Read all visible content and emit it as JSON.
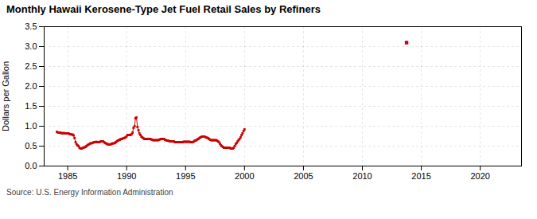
{
  "chart_data": {
    "type": "line",
    "title": "Monthly Hawaii Kerosene-Type Jet Fuel Retail Sales by Refiners",
    "ylabel": "Dollars per Gallon",
    "caption": "Source: U.S. Energy Information Administration",
    "xlim": [
      1983.0,
      2023.5
    ],
    "ylim": [
      0.0,
      3.5
    ],
    "xticks": [
      1985,
      1990,
      1995,
      2000,
      2005,
      2010,
      2015,
      2020
    ],
    "yticks": [
      {
        "value": 0.0,
        "label": "0.0"
      },
      0.5,
      {
        "value": 1.0,
        "label": "1.0"
      },
      1.5,
      {
        "value": 2.0,
        "label": "2.0"
      },
      2.5,
      {
        "value": 3.0,
        "label": "3.0"
      },
      3.5
    ],
    "grid": true,
    "series": [
      {
        "type": "line",
        "color": "#cc0000",
        "marker": "square",
        "x": [
          1984.08,
          1984.17,
          1984.25,
          1984.33,
          1984.42,
          1984.5,
          1984.58,
          1984.67,
          1984.75,
          1984.83,
          1984.92,
          1985.0,
          1985.08,
          1985.17,
          1985.25,
          1985.33,
          1985.42,
          1985.5,
          1985.58,
          1985.67,
          1985.75,
          1985.83,
          1985.92,
          1986.0,
          1986.08,
          1986.17,
          1986.25,
          1986.33,
          1986.42,
          1986.5,
          1986.58,
          1986.67,
          1986.75,
          1986.83,
          1986.92,
          1987.0,
          1987.08,
          1987.17,
          1987.25,
          1987.33,
          1987.42,
          1987.5,
          1987.58,
          1987.67,
          1987.75,
          1987.83,
          1987.92,
          1988.0,
          1988.08,
          1988.17,
          1988.25,
          1988.33,
          1988.42,
          1988.5,
          1988.58,
          1988.67,
          1988.75,
          1988.83,
          1988.92,
          1989.0,
          1989.08,
          1989.17,
          1989.25,
          1989.33,
          1989.42,
          1989.5,
          1989.58,
          1989.67,
          1989.75,
          1989.83,
          1989.92,
          1990.0,
          1990.08,
          1990.17,
          1990.25,
          1990.33,
          1990.42,
          1990.5,
          1990.58,
          1990.67,
          1990.75,
          1990.83,
          1990.92,
          1991.0,
          1991.08,
          1991.17,
          1991.25,
          1991.33,
          1991.42,
          1991.5,
          1991.58,
          1991.67,
          1991.75,
          1991.83,
          1991.92,
          1992.0,
          1992.08,
          1992.17,
          1992.25,
          1992.33,
          1992.42,
          1992.5,
          1992.58,
          1992.67,
          1992.75,
          1992.83,
          1992.92,
          1993.0,
          1993.08,
          1993.17,
          1993.25,
          1993.33,
          1993.42,
          1993.5,
          1993.58,
          1993.67,
          1993.75,
          1993.83,
          1993.92,
          1994.0,
          1994.08,
          1994.17,
          1994.25,
          1994.33,
          1994.42,
          1994.5,
          1994.58,
          1994.67,
          1994.75,
          1994.83,
          1994.92,
          1995.0,
          1995.08,
          1995.17,
          1995.25,
          1995.33,
          1995.42,
          1995.5,
          1995.58,
          1995.67,
          1995.75,
          1995.83,
          1995.92,
          1996.0,
          1996.08,
          1996.17,
          1996.25,
          1996.33,
          1996.42,
          1996.5,
          1996.58,
          1996.67,
          1996.75,
          1996.83,
          1996.92,
          1997.0,
          1997.08,
          1997.17,
          1997.25,
          1997.33,
          1997.42,
          1997.5,
          1997.58,
          1997.67,
          1997.75,
          1997.83,
          1997.92,
          1998.0,
          1998.08,
          1998.17,
          1998.25,
          1998.33,
          1998.42,
          1998.5,
          1998.58,
          1998.67,
          1998.75,
          1998.83,
          1998.92,
          1999.0,
          1999.08,
          1999.17,
          1999.25,
          1999.33,
          1999.42,
          1999.5,
          1999.58,
          1999.67,
          1999.75,
          1999.83,
          1999.92,
          2000.0
        ],
        "values": [
          0.86,
          0.84,
          0.84,
          0.84,
          0.83,
          0.83,
          0.82,
          0.83,
          0.82,
          0.82,
          0.82,
          0.82,
          0.82,
          0.8,
          0.8,
          0.79,
          0.79,
          0.77,
          0.7,
          0.6,
          0.55,
          0.52,
          0.5,
          0.46,
          0.44,
          0.44,
          0.45,
          0.46,
          0.47,
          0.48,
          0.5,
          0.52,
          0.54,
          0.55,
          0.57,
          0.57,
          0.58,
          0.59,
          0.6,
          0.6,
          0.61,
          0.6,
          0.6,
          0.6,
          0.61,
          0.62,
          0.62,
          0.62,
          0.6,
          0.58,
          0.57,
          0.55,
          0.55,
          0.54,
          0.54,
          0.55,
          0.56,
          0.57,
          0.57,
          0.58,
          0.6,
          0.62,
          0.64,
          0.65,
          0.66,
          0.68,
          0.68,
          0.69,
          0.7,
          0.71,
          0.72,
          0.75,
          0.78,
          0.78,
          0.78,
          0.78,
          0.8,
          0.84,
          0.96,
          1.0,
          1.2,
          1.22,
          0.98,
          0.9,
          0.82,
          0.78,
          0.74,
          0.72,
          0.7,
          0.68,
          0.68,
          0.68,
          0.68,
          0.68,
          0.68,
          0.68,
          0.67,
          0.66,
          0.65,
          0.65,
          0.65,
          0.65,
          0.65,
          0.65,
          0.66,
          0.67,
          0.68,
          0.68,
          0.68,
          0.68,
          0.66,
          0.65,
          0.64,
          0.64,
          0.63,
          0.62,
          0.62,
          0.62,
          0.62,
          0.62,
          0.6,
          0.6,
          0.6,
          0.6,
          0.6,
          0.6,
          0.6,
          0.6,
          0.6,
          0.61,
          0.61,
          0.61,
          0.61,
          0.61,
          0.61,
          0.61,
          0.6,
          0.6,
          0.6,
          0.61,
          0.63,
          0.64,
          0.65,
          0.67,
          0.68,
          0.7,
          0.72,
          0.73,
          0.74,
          0.74,
          0.74,
          0.73,
          0.72,
          0.71,
          0.7,
          0.68,
          0.66,
          0.65,
          0.65,
          0.65,
          0.65,
          0.65,
          0.65,
          0.64,
          0.62,
          0.6,
          0.56,
          0.52,
          0.5,
          0.48,
          0.46,
          0.46,
          0.46,
          0.46,
          0.46,
          0.46,
          0.46,
          0.44,
          0.44,
          0.44,
          0.46,
          0.5,
          0.55,
          0.58,
          0.62,
          0.65,
          0.68,
          0.72,
          0.78,
          0.82,
          0.88,
          0.92
        ]
      },
      {
        "type": "scatter",
        "color": "#cc0000",
        "marker": "square",
        "x": [
          2013.75
        ],
        "values": [
          3.1
        ]
      }
    ]
  }
}
